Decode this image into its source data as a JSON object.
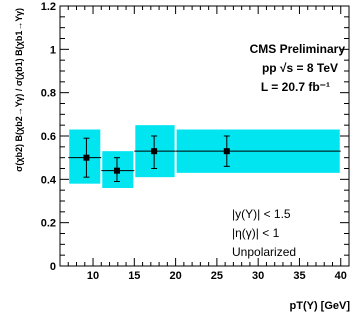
{
  "chart_data": {
    "type": "scatter",
    "title": "CMS Preliminary",
    "energy_label": "pp  √s = 8 TeV",
    "lumi_label": "L = 20.7 fb⁻¹",
    "xlabel": "pT(Υ) [GeV]",
    "ylabel": "σ(χb2) B(χb2→Υγ) / σ(χb1) B(χb1→Υγ)",
    "xlim": [
      6,
      41
    ],
    "ylim": [
      0,
      1.2
    ],
    "xticks": [
      "10",
      "15",
      "20",
      "25",
      "30",
      "35",
      "40"
    ],
    "yticks": [
      "0",
      "0.2",
      "0.4",
      "0.6",
      "0.8",
      "1",
      "1.2"
    ],
    "grid": false,
    "colors": {
      "syst_band": "#00e5f0",
      "marker": "#000000"
    },
    "points": [
      {
        "x": 9.2,
        "y": 0.5,
        "xlo": 7,
        "xhi": 11,
        "stat_lo": 0.41,
        "stat_hi": 0.59,
        "syst_lo": 0.38,
        "syst_hi": 0.63
      },
      {
        "x": 12.9,
        "y": 0.44,
        "xlo": 11,
        "xhi": 15,
        "stat_lo": 0.39,
        "stat_hi": 0.5,
        "syst_lo": 0.36,
        "syst_hi": 0.53
      },
      {
        "x": 17.4,
        "y": 0.53,
        "xlo": 15,
        "xhi": 20,
        "stat_lo": 0.45,
        "stat_hi": 0.6,
        "syst_lo": 0.41,
        "syst_hi": 0.65
      },
      {
        "x": 26.2,
        "y": 0.53,
        "xlo": 20,
        "xhi": 40,
        "stat_lo": 0.46,
        "stat_hi": 0.6,
        "syst_lo": 0.43,
        "syst_hi": 0.63
      }
    ],
    "cuts": [
      "|y(Υ)| <  1.5",
      "|η(γ)| <  1",
      "Unpolarized"
    ]
  }
}
